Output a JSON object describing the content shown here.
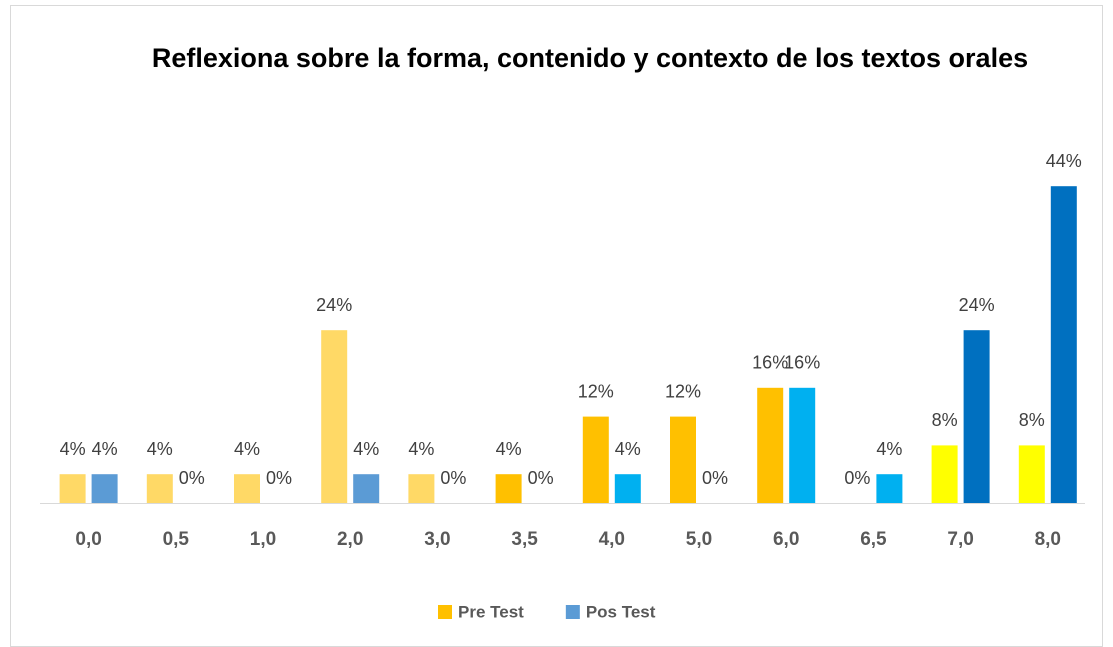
{
  "chart_data": {
    "type": "bar",
    "title": "Reflexiona sobre la forma, contenido y contexto de los textos orales",
    "categories": [
      "0,0",
      "0,5",
      "1,0",
      "2,0",
      "3,0",
      "3,5",
      "4,0",
      "5,0",
      "6,0",
      "6,5",
      "7,0",
      "8,0"
    ],
    "series": [
      {
        "name": "Pre Test",
        "color": "#FFC000",
        "values": [
          4,
          4,
          4,
          24,
          4,
          4,
          12,
          12,
          16,
          0,
          8,
          8
        ],
        "value_labels": [
          "4%",
          "4%",
          "4%",
          "24%",
          "4%",
          "4%",
          "12%",
          "12%",
          "16%",
          "0%",
          "8%",
          "8%"
        ],
        "colors": [
          "#FFD966",
          "#FFD966",
          "#FFD966",
          "#FFD966",
          "#FFD966",
          "#FFC000",
          "#FFC000",
          "#FFC000",
          "#FFC000",
          "#FFC000",
          "#FFFF00",
          "#FFFF00"
        ]
      },
      {
        "name": "Pos Test",
        "color": "#5B9BD5",
        "values": [
          4,
          0,
          0,
          4,
          0,
          0,
          4,
          0,
          16,
          4,
          24,
          44
        ],
        "value_labels": [
          "4%",
          "0%",
          "0%",
          "4%",
          "0%",
          "0%",
          "4%",
          "0%",
          "16%",
          "4%",
          "24%",
          "44%"
        ],
        "colors": [
          "#5B9BD5",
          "#5B9BD5",
          "#5B9BD5",
          "#5B9BD5",
          "#00B0F0",
          "#00B0F0",
          "#00B0F0",
          "#00B0F0",
          "#00B0F0",
          "#00B0F0",
          "#0070C0",
          "#0070C0"
        ]
      }
    ],
    "legend": "bottom"
  }
}
